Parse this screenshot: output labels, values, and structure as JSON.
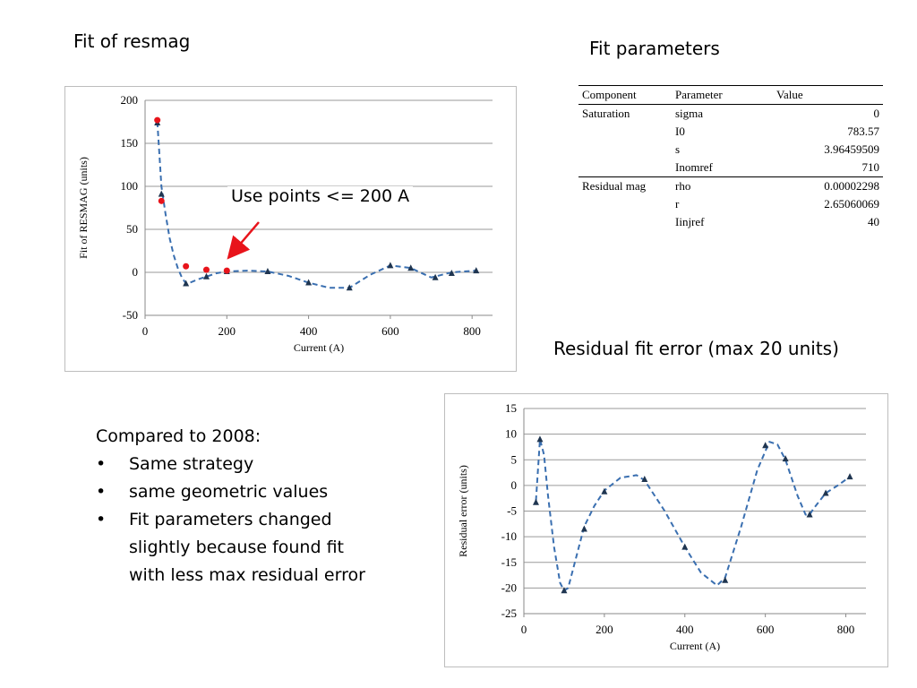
{
  "titles": {
    "fit_of_resmag": "Fit of resmag",
    "fit_parameters": "Fit parameters",
    "residual_fit_error": "Residual fit error (max 20 units)"
  },
  "annotation": {
    "text": "Use points <= 200 A",
    "arrow_color": "#e8141b"
  },
  "params_table": {
    "headers": [
      "Component",
      "Parameter",
      "Value"
    ],
    "rows": [
      {
        "component": "Saturation",
        "parameter": "sigma",
        "value": "0"
      },
      {
        "component": "",
        "parameter": "I0",
        "value": "783.57"
      },
      {
        "component": "",
        "parameter": "s",
        "value": "3.96459509"
      },
      {
        "component": "",
        "parameter": "Inomref",
        "value": "710"
      },
      {
        "component": "Residual mag",
        "parameter": "rho",
        "value": "0.00002298"
      },
      {
        "component": "",
        "parameter": "r",
        "value": "2.65060069"
      },
      {
        "component": "",
        "parameter": "Iinjref",
        "value": "40"
      }
    ]
  },
  "notes": {
    "heading": "Compared to 2008:",
    "bullets": [
      "Same strategy",
      "same geometric values",
      "Fit parameters changed slightly because found fit with less max residual error"
    ]
  },
  "chart_data": [
    {
      "type": "line",
      "xlabel": "Current (A)",
      "ylabel": "Fit of RESMAG (units)",
      "xlim": [
        0,
        850
      ],
      "ylim": [
        -50,
        200
      ],
      "xticks": [
        0,
        200,
        400,
        600,
        800
      ],
      "yticks": [
        -50,
        0,
        50,
        100,
        150,
        200
      ],
      "grid": "horizontal",
      "series": [
        {
          "style": "dashed-line",
          "color": "#3a6fb0",
          "x": [
            30,
            40,
            50,
            60,
            70,
            80,
            90,
            100,
            110,
            130,
            150,
            175,
            200,
            250,
            300,
            350,
            400,
            450,
            500,
            550,
            600,
            650,
            700,
            750,
            810
          ],
          "y": [
            175,
            100,
            68,
            40,
            20,
            5,
            -6,
            -13,
            -12,
            -8,
            -5,
            -1,
            1,
            2,
            1,
            -4,
            -12,
            -18,
            -18,
            -3,
            8,
            5,
            -6,
            0,
            2
          ]
        },
        {
          "style": "triangle-markers",
          "color": "#1f3550",
          "x": [
            30,
            40,
            100,
            150,
            200,
            300,
            400,
            500,
            600,
            650,
            710,
            750,
            810
          ],
          "y": [
            174,
            91,
            -13,
            -5,
            1,
            1,
            -12,
            -18,
            8,
            5,
            -6,
            -1,
            2
          ]
        },
        {
          "style": "dot-markers",
          "color": "#e8141b",
          "x": [
            30,
            40,
            100,
            150,
            200
          ],
          "y": [
            177,
            83,
            7,
            3,
            2
          ]
        }
      ]
    },
    {
      "type": "line",
      "xlabel": "Current (A)",
      "ylabel": "Residual error (units)",
      "xlim": [
        0,
        850
      ],
      "ylim": [
        -25,
        15
      ],
      "xticks": [
        0,
        200,
        400,
        600,
        800
      ],
      "yticks": [
        -25,
        -20,
        -15,
        -10,
        -5,
        0,
        5,
        10,
        15
      ],
      "grid": "horizontal",
      "series": [
        {
          "style": "dashed-line",
          "color": "#3a6fb0",
          "x": [
            30,
            40,
            50,
            60,
            75,
            90,
            100,
            110,
            130,
            150,
            175,
            200,
            240,
            280,
            300,
            350,
            400,
            440,
            480,
            500,
            540,
            580,
            610,
            630,
            650,
            680,
            700,
            710,
            720,
            750,
            780,
            810
          ],
          "y": [
            -3,
            9,
            6,
            -2,
            -12,
            -19,
            -20.5,
            -20,
            -14,
            -8,
            -4,
            -1,
            1.5,
            2,
            1,
            -5,
            -12,
            -17,
            -19.5,
            -18,
            -8,
            3,
            8.5,
            8,
            5,
            -2,
            -5.7,
            -5.7,
            -4.5,
            -1.5,
            0,
            1.7
          ]
        },
        {
          "style": "triangle-markers",
          "color": "#1f3550",
          "x": [
            30,
            40,
            100,
            150,
            200,
            300,
            400,
            500,
            600,
            650,
            710,
            750,
            810
          ],
          "y": [
            -3.3,
            9,
            -20.5,
            -8.5,
            -1.2,
            1.2,
            -12,
            -18.5,
            7.8,
            5.2,
            -5.7,
            -1.5,
            1.7
          ]
        }
      ]
    }
  ]
}
